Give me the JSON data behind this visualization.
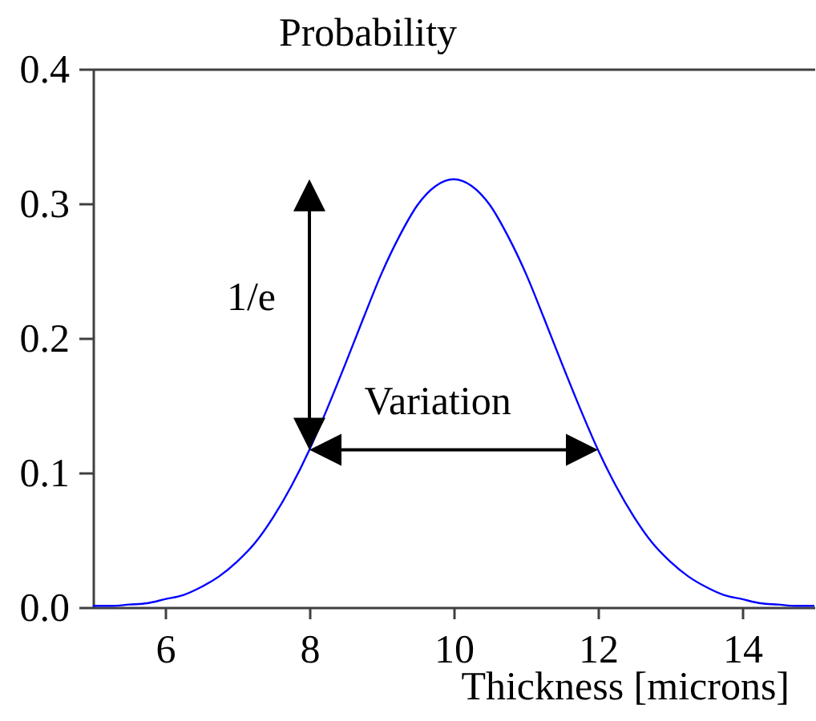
{
  "chart_data": {
    "type": "line",
    "ylabel": "Probability",
    "xlabel": "Thickness [microns]",
    "x": [
      5,
      5.25,
      5.5,
      5.75,
      6,
      6.25,
      6.5,
      6.75,
      7,
      7.25,
      7.5,
      7.75,
      8,
      8.25,
      8.5,
      8.75,
      9,
      9.25,
      9.5,
      9.75,
      10,
      10.25,
      10.5,
      10.75,
      11,
      11.25,
      11.5,
      11.75,
      12,
      12.25,
      12.5,
      12.75,
      13,
      13.25,
      13.5,
      13.75,
      14,
      14.25,
      14.5,
      14.75,
      15
    ],
    "values": [
      0.001,
      0.001,
      0.002,
      0.003,
      0.006,
      0.009,
      0.015,
      0.023,
      0.034,
      0.048,
      0.067,
      0.09,
      0.117,
      0.148,
      0.181,
      0.215,
      0.248,
      0.276,
      0.299,
      0.313,
      0.318,
      0.313,
      0.299,
      0.276,
      0.248,
      0.215,
      0.181,
      0.148,
      0.117,
      0.09,
      0.067,
      0.048,
      0.034,
      0.023,
      0.015,
      0.009,
      0.006,
      0.003,
      0.002,
      0.001,
      0.001
    ],
    "color": "#0000ff",
    "xlim": [
      5,
      15
    ],
    "ylim": [
      0,
      0.4
    ],
    "xticks": [
      6,
      8,
      10,
      12,
      14
    ],
    "yticks": [
      {
        "value": 0,
        "label": "0.0"
      },
      0.1,
      0.2,
      0.3,
      0.4
    ],
    "annotations": [
      "1/e",
      "Variation"
    ]
  }
}
